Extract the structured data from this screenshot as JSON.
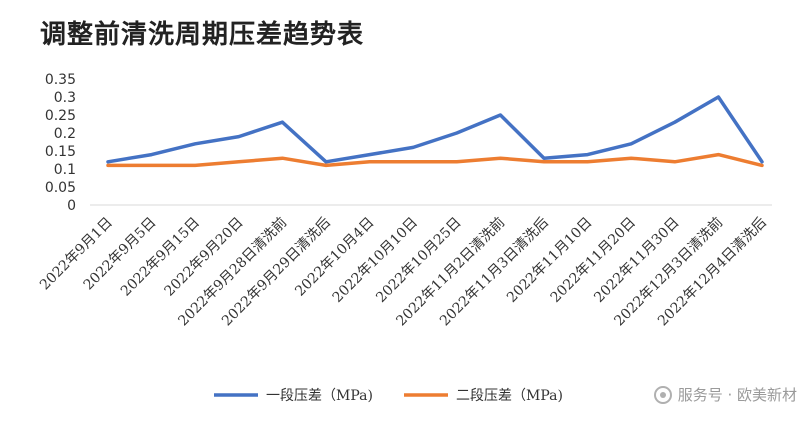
{
  "chart_data": {
    "type": "line",
    "title": "调整前清洗周期压差趋势表",
    "categories": [
      "2022年9月1日",
      "2022年9月5日",
      "2022年9月15日",
      "2022年9月20日",
      "2022年9月28日清洗前",
      "2022年9月29日清洗后",
      "2022年10月4日",
      "2022年10月10日",
      "2022年10月25日",
      "2022年11月2日清洗前",
      "2022年11月3日清洗后",
      "2022年11月10日",
      "2022年11月20日",
      "2022年11月30日",
      "2022年12月3日清洗前",
      "2022年12月4日清洗后"
    ],
    "series": [
      {
        "name": "一段压差（MPa)",
        "color": "#4472C4",
        "values": [
          0.12,
          0.14,
          0.17,
          0.19,
          0.23,
          0.12,
          0.14,
          0.16,
          0.2,
          0.25,
          0.13,
          0.14,
          0.17,
          0.23,
          0.3,
          0.12
        ]
      },
      {
        "name": "二段压差（MPa)",
        "color": "#ED7D31",
        "values": [
          0.11,
          0.11,
          0.11,
          0.12,
          0.13,
          0.11,
          0.12,
          0.12,
          0.12,
          0.13,
          0.12,
          0.12,
          0.13,
          0.12,
          0.14,
          0.11
        ]
      }
    ],
    "yticks": [
      "0",
      "0.05",
      "0.1",
      "0.15",
      "0.2",
      "0.25",
      "0.3",
      "0.35"
    ],
    "ylim": [
      0,
      0.35
    ],
    "grid": false,
    "legend_position": "bottom-right"
  },
  "watermark": {
    "text": "服务号 · 欧美新材",
    "icon": "wechat-icon"
  }
}
